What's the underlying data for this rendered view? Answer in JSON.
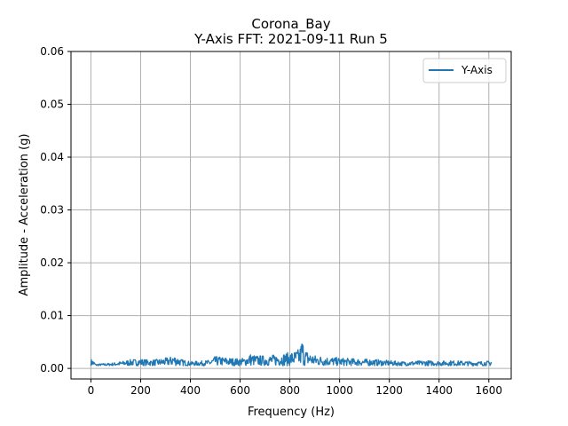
{
  "chart_data": {
    "type": "line",
    "title": "Corona_Bay",
    "subtitle": "Y-Axis FFT: 2021-09-11 Run 5",
    "xlabel": "Frequency (Hz)",
    "ylabel": "Amplitude - Acceleration (g)",
    "xlim": [
      -80,
      1690
    ],
    "ylim": [
      -0.002,
      0.06
    ],
    "xticks": [
      0,
      200,
      400,
      600,
      800,
      1000,
      1200,
      1400,
      1600
    ],
    "yticks": [
      0.0,
      0.01,
      0.02,
      0.03,
      0.04,
      0.05,
      0.06
    ],
    "xtick_labels": [
      "0",
      "200",
      "400",
      "600",
      "800",
      "1000",
      "1200",
      "1400",
      "1600"
    ],
    "ytick_labels": [
      "0.00",
      "0.01",
      "0.02",
      "0.03",
      "0.04",
      "0.05",
      "0.06"
    ],
    "grid": true,
    "legend_position": "top-right",
    "series": [
      {
        "name": "Y-Axis",
        "color": "#1f77b4",
        "x": [
          0,
          10,
          20,
          40,
          80,
          120,
          160,
          200,
          240,
          280,
          320,
          330,
          345,
          360,
          400,
          440,
          480,
          500,
          540,
          580,
          620,
          640,
          660,
          700,
          740,
          780,
          800,
          820,
          840,
          850,
          855,
          860,
          880,
          900,
          950,
          1000,
          1050,
          1100,
          1150,
          1200,
          1250,
          1300,
          1350,
          1400,
          1450,
          1500,
          1550,
          1600,
          1610
        ],
        "y": [
          0.0018,
          0.0015,
          0.0008,
          0.0009,
          0.001,
          0.0013,
          0.0017,
          0.0018,
          0.0016,
          0.0018,
          0.0022,
          0.0025,
          0.0023,
          0.0018,
          0.0013,
          0.0014,
          0.0016,
          0.0023,
          0.0021,
          0.0019,
          0.002,
          0.0028,
          0.0025,
          0.0024,
          0.0026,
          0.0029,
          0.0031,
          0.0033,
          0.0038,
          0.0059,
          0.0045,
          0.0036,
          0.003,
          0.0025,
          0.0022,
          0.002,
          0.0019,
          0.0018,
          0.0017,
          0.0015,
          0.0013,
          0.0014,
          0.0015,
          0.0014,
          0.0015,
          0.0014,
          0.0013,
          0.0014,
          0.0012
        ]
      }
    ]
  }
}
